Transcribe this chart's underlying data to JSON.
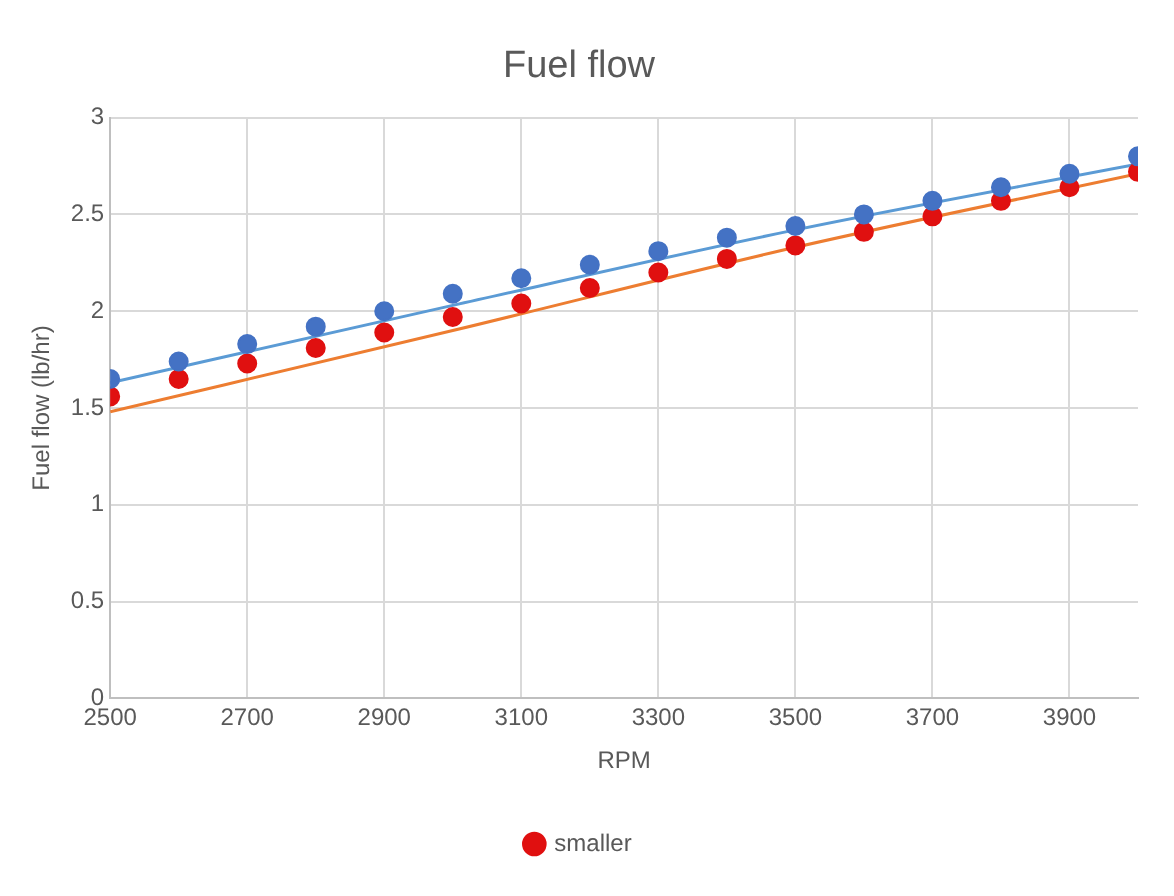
{
  "chart_data": {
    "type": "scatter",
    "title": "Fuel flow",
    "xlabel": "RPM",
    "ylabel": "Fuel flow (lb/hr)",
    "x": [
      2500,
      2600,
      2700,
      2800,
      2900,
      3000,
      3100,
      3200,
      3300,
      3400,
      3500,
      3600,
      3700,
      3800,
      3900,
      4000
    ],
    "series": [
      {
        "color": "#4472c4",
        "values": [
          1.65,
          1.74,
          1.83,
          1.92,
          2.0,
          2.09,
          2.17,
          2.24,
          2.31,
          2.38,
          2.44,
          2.5,
          2.57,
          2.64,
          2.71,
          2.8
        ]
      },
      {
        "name": "smaller",
        "color": "#e01010",
        "values": [
          1.56,
          1.65,
          1.73,
          1.81,
          1.89,
          1.97,
          2.04,
          2.12,
          2.2,
          2.27,
          2.34,
          2.41,
          2.49,
          2.57,
          2.64,
          2.72
        ]
      },
      {
        "type": "line",
        "marker": "none",
        "color": "#5b9bd5",
        "x": [
          2500,
          3000,
          3500,
          4000
        ],
        "values": [
          1.63,
          2.03,
          2.42,
          2.76
        ]
      },
      {
        "type": "line",
        "marker": "none",
        "color": "#ed7d31",
        "x": [
          2500,
          3000,
          3500,
          4000
        ],
        "values": [
          1.48,
          1.9,
          2.33,
          2.71
        ]
      }
    ],
    "xlim": [
      2500,
      4000
    ],
    "xticks": [
      2500,
      2700,
      2900,
      3100,
      3300,
      3500,
      3700,
      3900
    ],
    "ylim": [
      0,
      3
    ],
    "yticks": [
      0,
      0.5,
      1,
      1.5,
      2,
      2.5,
      3
    ],
    "grid": true,
    "legend": "bottom",
    "marker": "circle"
  }
}
